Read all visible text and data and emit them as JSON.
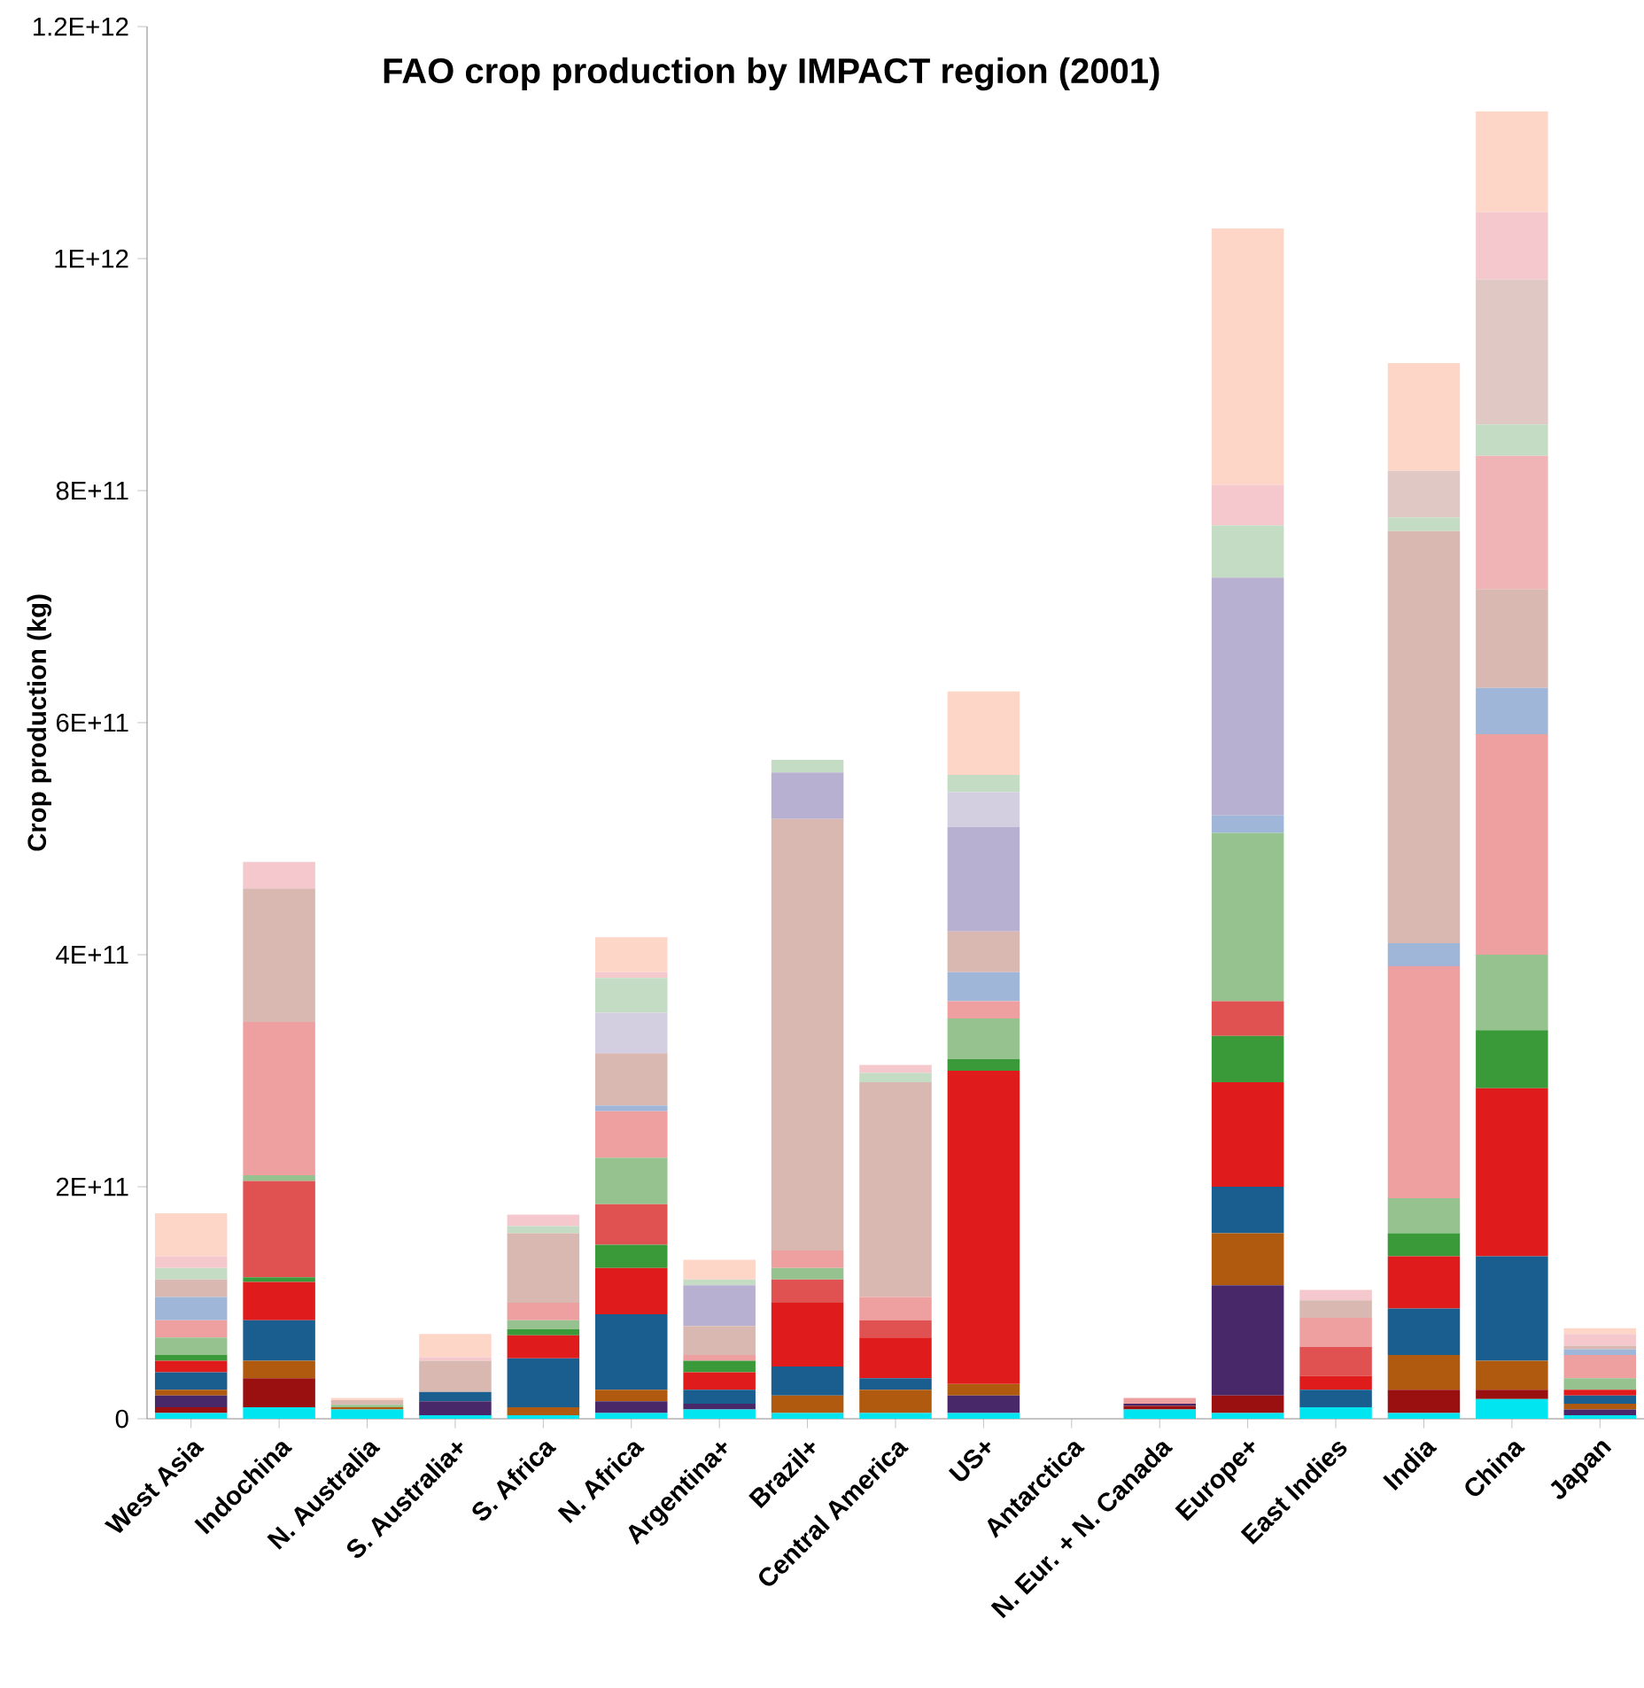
{
  "chart_data": {
    "type": "bar",
    "stacked": true,
    "title": "FAO crop production by IMPACT region (2001)",
    "ylabel": "Crop production  (kg)",
    "categories": [
      "West Asia",
      "Indochina",
      "N. Australia",
      "S. Australia+",
      "S. Africa",
      "N. Africa",
      "Argentina+",
      "Brazil+",
      "Central America",
      "US+",
      "Antarctica",
      "N. Eur. + N. Canada",
      "Europe+",
      "East Indies",
      "India",
      "China",
      "Japan"
    ],
    "ylim": [
      0,
      1200000000000.0
    ],
    "yticks": [
      0,
      {
        "value": 200000000000.0,
        "label": "2E+11"
      },
      {
        "value": 400000000000.0,
        "label": "4E+11"
      },
      {
        "value": 600000000000.0,
        "label": "6E+11"
      },
      {
        "value": 800000000000.0,
        "label": "8E+11"
      },
      {
        "value": 1000000000000.0,
        "label": "1E+12"
      },
      {
        "value": 1200000000000.0,
        "label": "1.2E+12"
      }
    ],
    "series": [
      {
        "color": "#00e5f0",
        "values": [
          5000000000.0,
          10000000000.0,
          8000000000.0,
          3000000000.0,
          3000000000.0,
          5000000000.0,
          8000000000.0,
          5000000000.0,
          5000000000.0,
          5000000000.0,
          0,
          8000000000.0,
          5000000000.0,
          10000000000.0,
          5000000000.0,
          17000000000.0,
          3000000000.0
        ]
      },
      {
        "color": "#9a1010",
        "values": [
          5000000000.0,
          25000000000.0,
          0,
          0,
          0,
          0,
          0,
          0,
          0,
          0,
          0,
          3000000000.0,
          15000000000.0,
          0,
          20000000000.0,
          8000000000.0,
          0
        ]
      },
      {
        "color": "#482868",
        "values": [
          10000000000.0,
          0,
          0,
          12000000000.0,
          0,
          10000000000.0,
          5000000000.0,
          0,
          0,
          15000000000.0,
          0,
          2000000000.0,
          95000000000.0,
          0,
          0,
          0,
          5000000000.0
        ]
      },
      {
        "color": "#b05a10",
        "values": [
          5000000000.0,
          15000000000.0,
          2000000000.0,
          0,
          7000000000.0,
          10000000000.0,
          0,
          15000000000.0,
          20000000000.0,
          10000000000.0,
          0,
          0,
          45000000000.0,
          0,
          30000000000.0,
          25000000000.0,
          5000000000.0
        ]
      },
      {
        "color": "#1a5e90",
        "values": [
          15000000000.0,
          35000000000.0,
          0,
          8000000000.0,
          42000000000.0,
          65000000000.0,
          12000000000.0,
          25000000000.0,
          10000000000.0,
          0,
          0,
          0,
          40000000000.0,
          15000000000.0,
          40000000000.0,
          90000000000.0,
          7000000000.0
        ]
      },
      {
        "color": "#e01b1b",
        "values": [
          10000000000.0,
          33000000000.0,
          0,
          0,
          20000000000.0,
          40000000000.0,
          15000000000.0,
          55000000000.0,
          35000000000.0,
          270000000000.0,
          0,
          0,
          90000000000.0,
          12000000000.0,
          45000000000.0,
          145000000000.0,
          5000000000.0
        ]
      },
      {
        "color": "#3a9a3a",
        "values": [
          5000000000.0,
          4000000000.0,
          0,
          0,
          5000000000.0,
          20000000000.0,
          10000000000.0,
          0,
          0,
          10000000000.0,
          0,
          0,
          40000000000.0,
          0,
          20000000000.0,
          50000000000.0,
          0
        ]
      },
      {
        "color": "#e05252",
        "values": [
          0,
          83000000000.0,
          0,
          0,
          0,
          35000000000.0,
          0,
          20000000000.0,
          15000000000.0,
          0,
          0,
          0,
          30000000000.0,
          25000000000.0,
          0,
          0,
          0
        ]
      },
      {
        "color": "#96c290",
        "values": [
          15000000000.0,
          5000000000.0,
          2000000000.0,
          0,
          8000000000.0,
          40000000000.0,
          0,
          10000000000.0,
          0,
          35000000000.0,
          0,
          0,
          145000000000.0,
          0,
          30000000000.0,
          65000000000.0,
          10000000000.0
        ]
      },
      {
        "color": "#ee9f9f",
        "values": [
          15000000000.0,
          132000000000.0,
          0,
          0,
          15000000000.0,
          40000000000.0,
          5000000000.0,
          15000000000.0,
          20000000000.0,
          15000000000.0,
          0,
          5000000000.0,
          0,
          25000000000.0,
          200000000000.0,
          190000000000.0,
          20000000000.0
        ]
      },
      {
        "color": "#a0b6d8",
        "values": [
          20000000000.0,
          0,
          0,
          0,
          0,
          5000000000.0,
          0,
          0,
          0,
          25000000000.0,
          0,
          0,
          15000000000.0,
          0,
          20000000000.0,
          40000000000.0,
          5000000000.0
        ]
      },
      {
        "color": "#d8b8b0",
        "values": [
          15000000000.0,
          115000000000.0,
          4000000000.0,
          27000000000.0,
          60000000000.0,
          45000000000.0,
          25000000000.0,
          372000000000.0,
          185000000000.0,
          35000000000.0,
          0,
          0,
          0,
          15000000000.0,
          355000000000.0,
          85000000000.0,
          3000000000.0
        ]
      },
      {
        "color": "#f0b4b6",
        "values": [
          0,
          0,
          0,
          0,
          0,
          0,
          0,
          0,
          0,
          0,
          0,
          0,
          0,
          0,
          0,
          115000000000.0,
          0
        ]
      },
      {
        "color": "#b8b0d0",
        "values": [
          0,
          0,
          0,
          0,
          0,
          0,
          35000000000.0,
          40000000000.0,
          0,
          90000000000.0,
          0,
          0,
          205000000000.0,
          0,
          0,
          0,
          0
        ]
      },
      {
        "color": "#d4cfe0",
        "values": [
          0,
          0,
          0,
          0,
          0,
          35000000000.0,
          0,
          0,
          0,
          30000000000.0,
          0,
          0,
          0,
          0,
          0,
          0,
          0
        ]
      },
      {
        "color": "#c4dcc4",
        "values": [
          10000000000.0,
          0,
          0,
          0,
          6000000000.0,
          30000000000.0,
          5000000000.0,
          11000000000.0,
          8000000000.0,
          15000000000.0,
          0,
          0,
          45000000000.0,
          0,
          12000000000.0,
          27000000000.0,
          0
        ]
      },
      {
        "color": "#e0c8c4",
        "values": [
          0,
          0,
          0,
          0,
          0,
          0,
          0,
          0,
          0,
          0,
          0,
          0,
          0,
          0,
          40000000000.0,
          125000000000.0,
          0
        ]
      },
      {
        "color": "#f4c8cc",
        "values": [
          10000000000.0,
          23000000000.0,
          0,
          3000000000.0,
          10000000000.0,
          5000000000.0,
          0,
          0,
          7000000000.0,
          0,
          0,
          0,
          35000000000.0,
          9000000000.0,
          0,
          58000000000.0,
          10000000000.0
        ]
      },
      {
        "color": "#fed6c8",
        "values": [
          37000000000.0,
          0,
          2000000000.0,
          20000000000.0,
          0,
          30000000000.0,
          17000000000.0,
          0,
          0,
          72000000000.0,
          0,
          0,
          221000000000.0,
          0,
          93000000000.0,
          87000000000.0,
          5000000000.0
        ]
      }
    ]
  }
}
